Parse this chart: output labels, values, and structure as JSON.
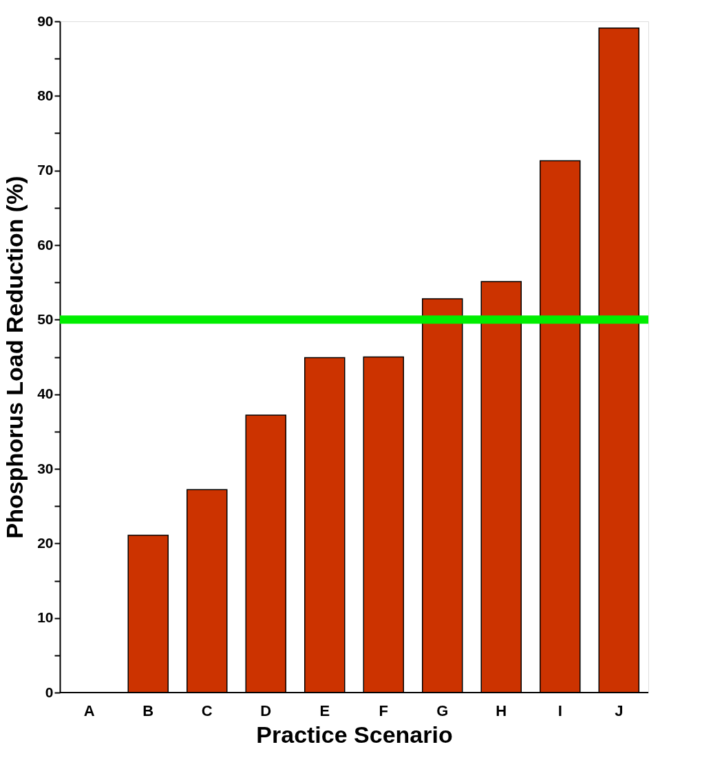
{
  "chart_data": {
    "type": "bar",
    "xlabel": "Practice Scenario",
    "ylabel": "Phosphorus Load Reduction (%)",
    "categories": [
      "A",
      "B",
      "C",
      "D",
      "E",
      "F",
      "G",
      "H",
      "I",
      "J"
    ],
    "series": [
      {
        "color": "#cc3300",
        "values": [
          null,
          21.1,
          27.2,
          37.2,
          44.9,
          45.0,
          52.8,
          55.1,
          71.3,
          89.1
        ]
      }
    ],
    "ylim": [
      0,
      90
    ],
    "yticks": [
      0,
      {
        "value": 5,
        "label": null
      },
      10,
      {
        "value": 15,
        "label": null
      },
      20,
      {
        "value": 25,
        "label": null
      },
      30,
      {
        "value": 35,
        "label": null
      },
      40,
      {
        "value": 45,
        "label": null
      },
      50,
      {
        "value": 55,
        "label": null
      },
      60,
      {
        "value": 65,
        "label": null
      },
      70,
      {
        "value": 75,
        "label": null
      },
      80,
      {
        "value": 85,
        "label": null
      },
      90
    ],
    "ref_lines": [
      {
        "axis": "y",
        "value": 50,
        "color": "#00ee00"
      }
    ],
    "grid": false
  }
}
